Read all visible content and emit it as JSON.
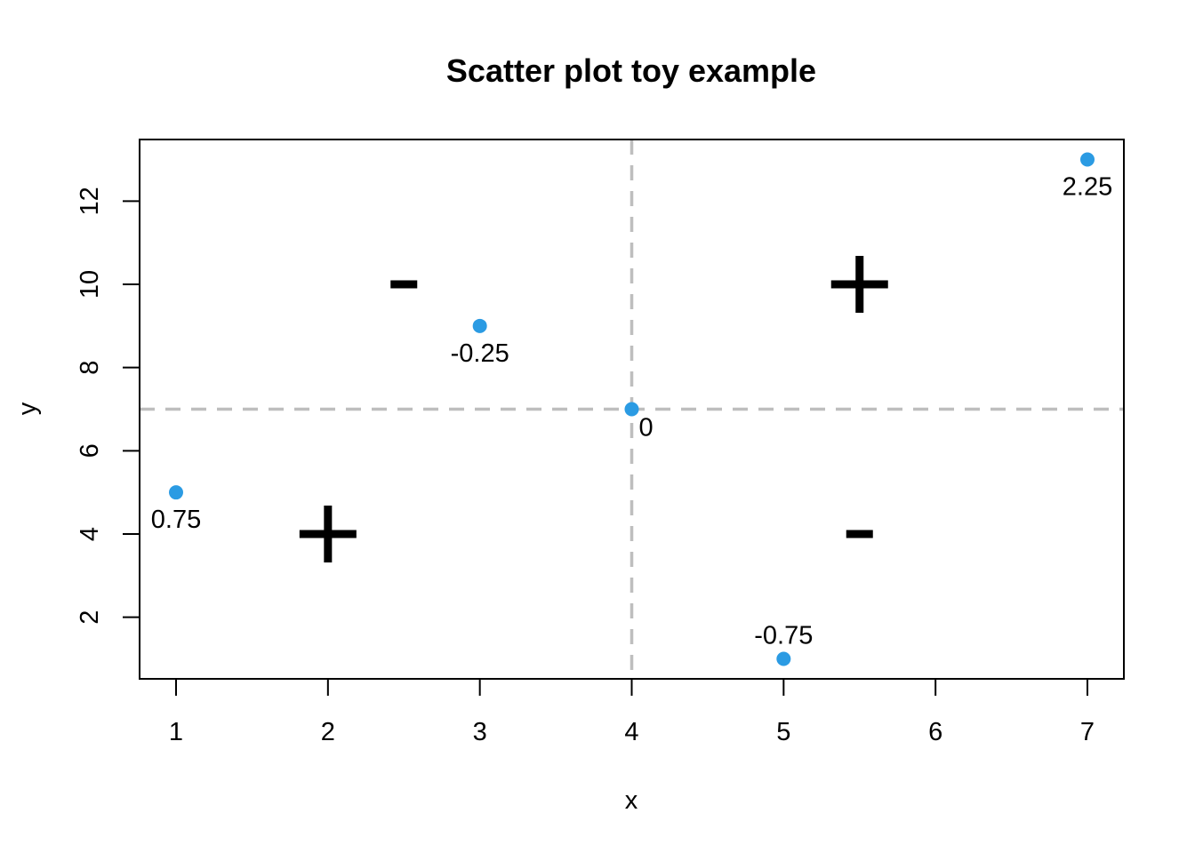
{
  "chart_data": {
    "type": "scatter",
    "title": "Scatter plot toy example",
    "xlabel": "x",
    "ylabel": "y",
    "xlim": [
      0.76,
      7.24
    ],
    "ylim": [
      0.52,
      13.48
    ],
    "xticks": [
      1,
      2,
      3,
      4,
      5,
      6,
      7
    ],
    "yticks": [
      2,
      4,
      6,
      8,
      10,
      12
    ],
    "grid": false,
    "legend": "none",
    "point_color": "#2b9be3",
    "reference_color": "#bebebe",
    "points": [
      {
        "x": 1,
        "y": 5,
        "label": "0.75",
        "label_pos": "below"
      },
      {
        "x": 3,
        "y": 9,
        "label": "-0.25",
        "label_pos": "below"
      },
      {
        "x": 4,
        "y": 7,
        "label": "0",
        "label_pos": "below-right"
      },
      {
        "x": 5,
        "y": 1,
        "label": "-0.75",
        "label_pos": "above"
      },
      {
        "x": 7,
        "y": 13,
        "label": "2.25",
        "label_pos": "below"
      }
    ],
    "reference_lines": [
      {
        "orientation": "vertical",
        "value": 4,
        "style": "dashed"
      },
      {
        "orientation": "horizontal",
        "value": 7,
        "style": "dashed"
      }
    ],
    "annotations": [
      {
        "x": 2.5,
        "y": 10,
        "symbol": "minus"
      },
      {
        "x": 5.5,
        "y": 10,
        "symbol": "plus"
      },
      {
        "x": 2,
        "y": 4,
        "symbol": "plus"
      },
      {
        "x": 5.5,
        "y": 4,
        "symbol": "minus"
      }
    ]
  }
}
